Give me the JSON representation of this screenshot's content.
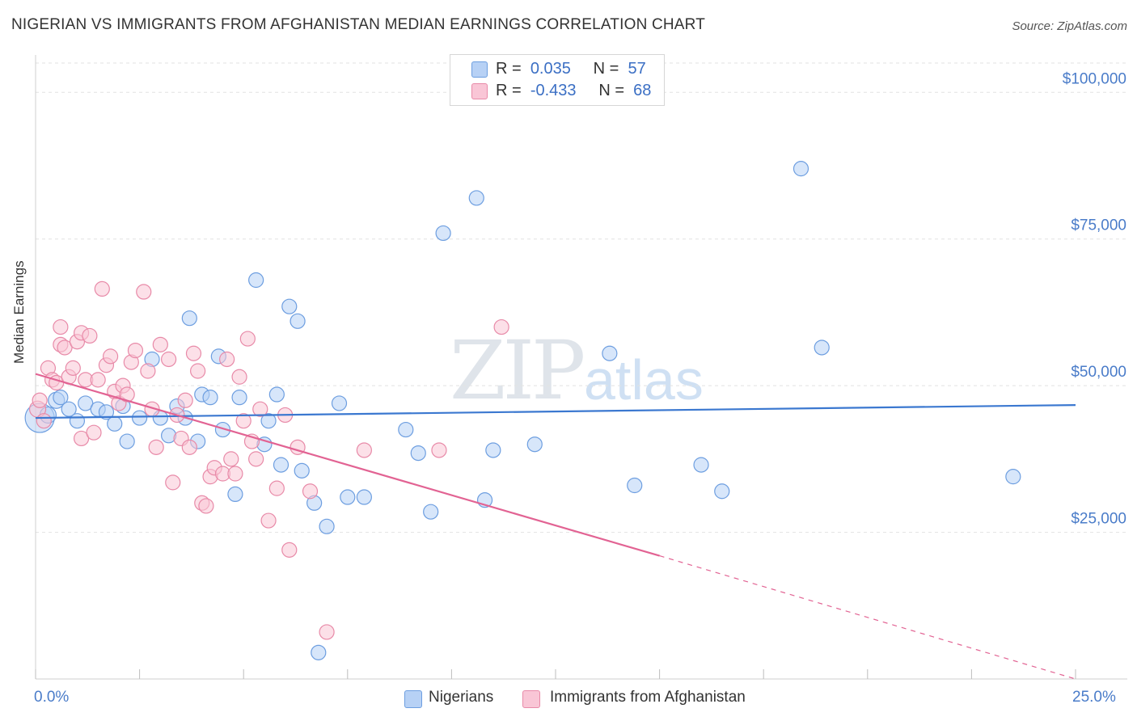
{
  "title": "NIGERIAN VS IMMIGRANTS FROM AFGHANISTAN MEDIAN EARNINGS CORRELATION CHART",
  "source": "Source: ZipAtlas.com",
  "watermark": {
    "zip": "ZIP",
    "atlas": "atlas"
  },
  "legend": {
    "rows": [
      {
        "r_label": "R =",
        "r_value": "0.035",
        "n_label": "N =",
        "n_value": "57",
        "color": "#b7d1f5",
        "border": "#6d9ee0"
      },
      {
        "r_label": "R =",
        "r_value": "-0.433",
        "n_label": "N =",
        "n_value": "68",
        "color": "#f9c6d6",
        "border": "#e88aa8"
      }
    ]
  },
  "bottom_legend": [
    {
      "label": "Nigerians",
      "color": "#b7d1f5",
      "border": "#6d9ee0"
    },
    {
      "label": "Immigrants from Afghanistan",
      "color": "#f9c6d6",
      "border": "#e88aa8"
    }
  ],
  "chart_data": {
    "type": "scatter",
    "title": "NIGERIAN VS IMMIGRANTS FROM AFGHANISTAN MEDIAN EARNINGS CORRELATION CHART",
    "xlabel": "",
    "ylabel": "Median Earnings",
    "xlim": [
      0,
      25
    ],
    "ylim": [
      0,
      105000
    ],
    "x_tick_labels": [
      "0.0%",
      "25.0%"
    ],
    "y_ticks": [
      25000,
      50000,
      75000,
      100000
    ],
    "y_tick_labels": [
      "$25,000",
      "$50,000",
      "$75,000",
      "$100,000"
    ],
    "grid": true,
    "series": [
      {
        "name": "Nigerians",
        "color": "#6d9ee0",
        "fill": "#b7d1f5",
        "trend": {
          "x": [
            0,
            25
          ],
          "y": [
            44500,
            46700
          ],
          "color": "#3b78d0"
        },
        "points": [
          [
            0.1,
            44500,
            18
          ],
          [
            0.3,
            45000,
            10
          ],
          [
            0.5,
            47500,
            10
          ],
          [
            0.6,
            48000,
            9
          ],
          [
            0.8,
            46000,
            9
          ],
          [
            1.0,
            44000,
            9
          ],
          [
            1.2,
            47000,
            9
          ],
          [
            1.5,
            46000,
            9
          ],
          [
            1.7,
            45500,
            9
          ],
          [
            1.9,
            43500,
            9
          ],
          [
            2.1,
            46500,
            9
          ],
          [
            2.2,
            40500,
            9
          ],
          [
            2.5,
            44500,
            9
          ],
          [
            2.8,
            54500,
            9
          ],
          [
            3.0,
            44500,
            9
          ],
          [
            3.2,
            41500,
            9
          ],
          [
            3.4,
            46500,
            9
          ],
          [
            3.6,
            44500,
            9
          ],
          [
            3.7,
            61500,
            9
          ],
          [
            3.9,
            40500,
            9
          ],
          [
            4.0,
            48500,
            9
          ],
          [
            4.2,
            48000,
            9
          ],
          [
            4.4,
            55000,
            9
          ],
          [
            4.5,
            42500,
            9
          ],
          [
            4.8,
            31500,
            9
          ],
          [
            4.9,
            48000,
            9
          ],
          [
            5.3,
            68000,
            9
          ],
          [
            5.5,
            40000,
            9
          ],
          [
            5.6,
            44000,
            9
          ],
          [
            5.8,
            48500,
            9
          ],
          [
            5.9,
            36500,
            9
          ],
          [
            6.1,
            63500,
            9
          ],
          [
            6.3,
            61000,
            9
          ],
          [
            6.4,
            35500,
            9
          ],
          [
            6.7,
            30000,
            9
          ],
          [
            6.8,
            4500,
            9
          ],
          [
            7.0,
            26000,
            9
          ],
          [
            7.3,
            47000,
            9
          ],
          [
            7.5,
            31000,
            9
          ],
          [
            7.9,
            31000,
            9
          ],
          [
            8.9,
            42500,
            9
          ],
          [
            9.2,
            38500,
            9
          ],
          [
            9.5,
            28500,
            9
          ],
          [
            9.8,
            76000,
            9
          ],
          [
            10.6,
            82000,
            9
          ],
          [
            10.8,
            30500,
            9
          ],
          [
            11.0,
            39000,
            9
          ],
          [
            12.0,
            40000,
            9
          ],
          [
            13.8,
            55500,
            9
          ],
          [
            14.4,
            33000,
            9
          ],
          [
            16.0,
            36500,
            9
          ],
          [
            16.5,
            32000,
            9
          ],
          [
            18.4,
            87000,
            9
          ],
          [
            18.9,
            56500,
            9
          ],
          [
            23.5,
            34500,
            9
          ]
        ]
      },
      {
        "name": "Immigrants from Afghanistan",
        "color": "#e88aa8",
        "fill": "#f9c6d6",
        "trend": {
          "x": [
            0,
            15
          ],
          "y": [
            52000,
            21000
          ],
          "color": "#e26393",
          "dashed_to": [
            25,
            0
          ]
        },
        "points": [
          [
            0.05,
            46000,
            10
          ],
          [
            0.1,
            47500,
            9
          ],
          [
            0.2,
            44000,
            9
          ],
          [
            0.3,
            53000,
            9
          ],
          [
            0.4,
            51000,
            9
          ],
          [
            0.5,
            50500,
            9
          ],
          [
            0.6,
            57000,
            9
          ],
          [
            0.6,
            60000,
            9
          ],
          [
            0.7,
            56500,
            9
          ],
          [
            0.8,
            51500,
            9
          ],
          [
            0.9,
            53000,
            9
          ],
          [
            1.0,
            57500,
            9
          ],
          [
            1.1,
            59000,
            9
          ],
          [
            1.1,
            41000,
            9
          ],
          [
            1.2,
            51000,
            9
          ],
          [
            1.3,
            58500,
            9
          ],
          [
            1.4,
            42000,
            9
          ],
          [
            1.5,
            51000,
            9
          ],
          [
            1.6,
            66500,
            9
          ],
          [
            1.7,
            53500,
            9
          ],
          [
            1.8,
            55000,
            9
          ],
          [
            1.9,
            49000,
            9
          ],
          [
            2.0,
            47000,
            9
          ],
          [
            2.1,
            50000,
            9
          ],
          [
            2.2,
            48500,
            9
          ],
          [
            2.3,
            54000,
            9
          ],
          [
            2.4,
            56000,
            9
          ],
          [
            2.6,
            66000,
            9
          ],
          [
            2.7,
            52500,
            9
          ],
          [
            2.8,
            46000,
            9
          ],
          [
            2.9,
            39500,
            9
          ],
          [
            3.0,
            57000,
            9
          ],
          [
            3.2,
            54500,
            9
          ],
          [
            3.3,
            33500,
            9
          ],
          [
            3.4,
            45000,
            9
          ],
          [
            3.5,
            41000,
            9
          ],
          [
            3.6,
            47500,
            9
          ],
          [
            3.7,
            39500,
            9
          ],
          [
            3.8,
            55500,
            9
          ],
          [
            3.9,
            52500,
            9
          ],
          [
            4.0,
            30000,
            9
          ],
          [
            4.1,
            29500,
            9
          ],
          [
            4.2,
            34500,
            9
          ],
          [
            4.3,
            36000,
            9
          ],
          [
            4.5,
            35000,
            9
          ],
          [
            4.6,
            54500,
            9
          ],
          [
            4.7,
            37500,
            9
          ],
          [
            4.8,
            35000,
            9
          ],
          [
            4.9,
            51500,
            9
          ],
          [
            5.0,
            44000,
            9
          ],
          [
            5.1,
            58000,
            9
          ],
          [
            5.2,
            40500,
            9
          ],
          [
            5.3,
            37500,
            9
          ],
          [
            5.4,
            46000,
            9
          ],
          [
            5.6,
            27000,
            9
          ],
          [
            5.8,
            32500,
            9
          ],
          [
            6.0,
            45000,
            9
          ],
          [
            6.1,
            22000,
            9
          ],
          [
            6.3,
            39500,
            9
          ],
          [
            6.6,
            32000,
            9
          ],
          [
            7.0,
            8000,
            9
          ],
          [
            7.9,
            39000,
            9
          ],
          [
            9.7,
            39000,
            9
          ],
          [
            11.2,
            60000,
            9
          ]
        ]
      }
    ]
  }
}
